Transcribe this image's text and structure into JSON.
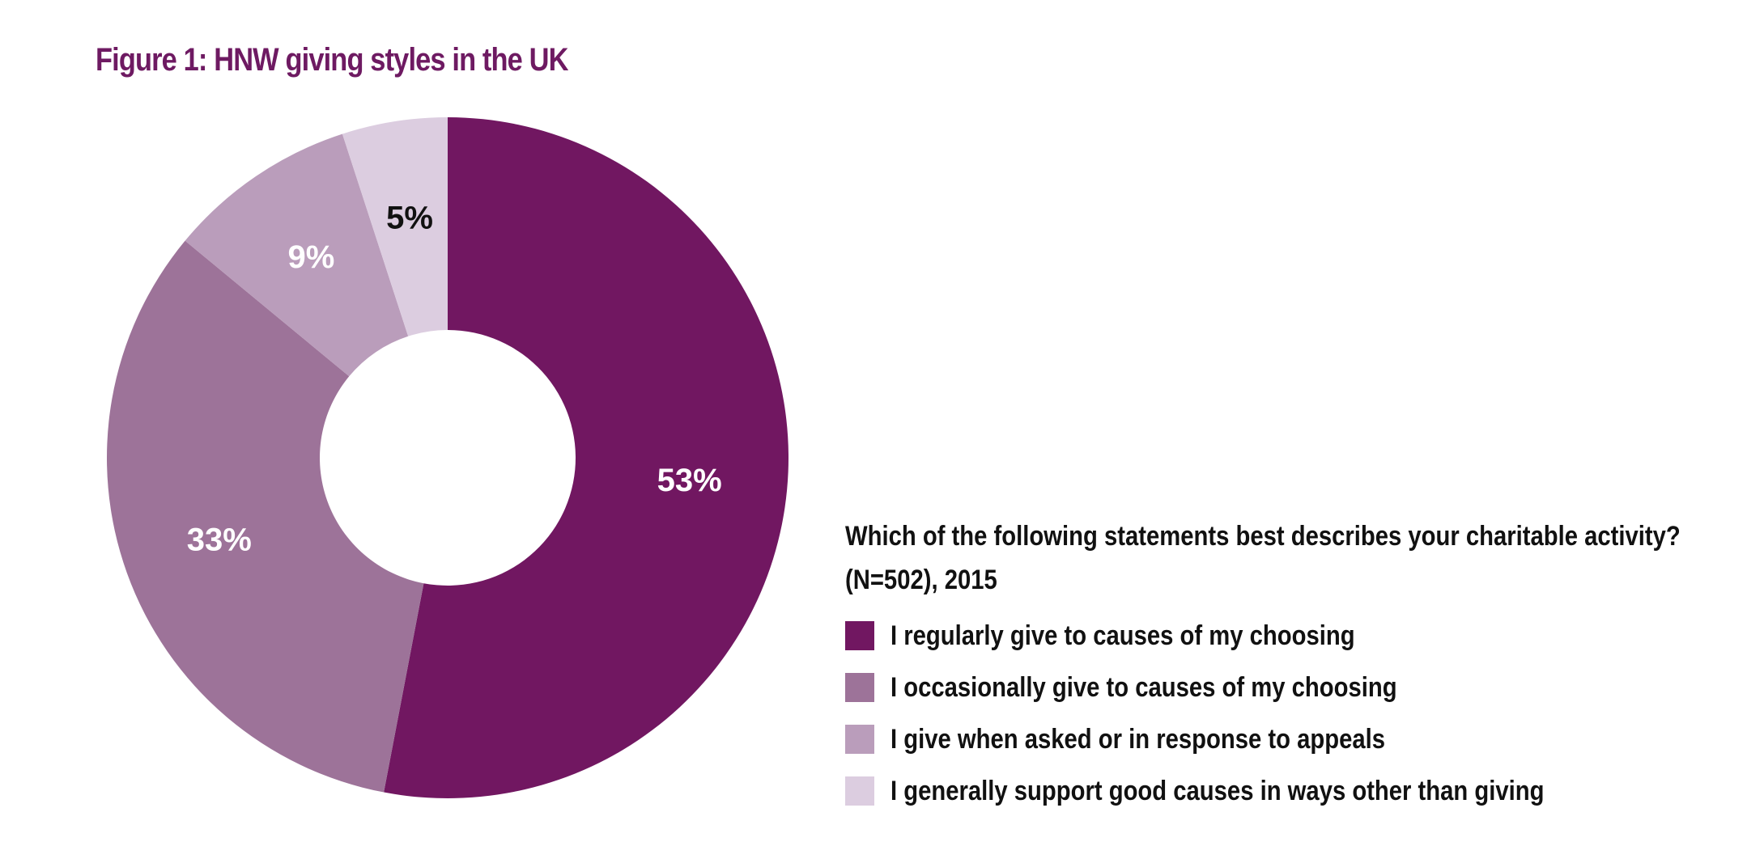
{
  "figure": {
    "title": "Figure 1: HNW giving styles in the UK"
  },
  "chart_data": {
    "type": "pie",
    "variant": "donut",
    "title": "Figure 1: HNW giving styles in the UK",
    "question": "Which of the following statements best describes your charitable activity?",
    "sample_note": "(N=502), 2015",
    "legend_position": "right",
    "slices": [
      {
        "name": "I regularly give to causes of my choosing",
        "value": 53,
        "label": "53%",
        "color": "#711761",
        "label_color": "#ffffff"
      },
      {
        "name": "I occasionally give to causes of my choosing",
        "value": 33,
        "label": "33%",
        "color": "#9d7399",
        "label_color": "#ffffff"
      },
      {
        "name": "I give when asked or in response to appeals",
        "value": 9,
        "label": "9%",
        "color": "#ba9dbb",
        "label_color": "#ffffff"
      },
      {
        "name": "I generally support good causes in ways other than giving",
        "value": 5,
        "label": "5%",
        "color": "#dccde0",
        "label_color": "#111111"
      }
    ]
  }
}
